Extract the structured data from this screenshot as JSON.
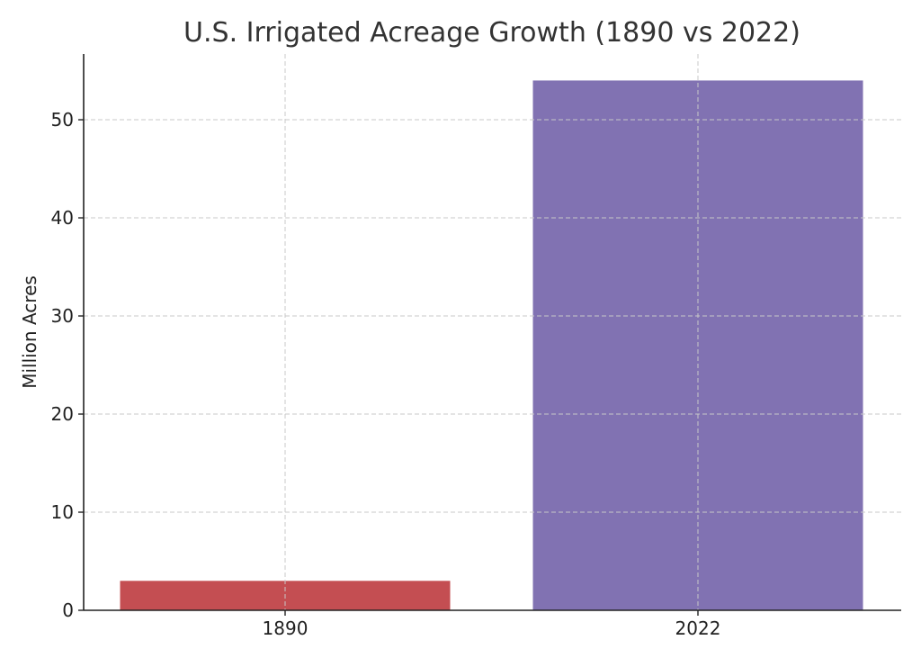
{
  "chart_data": {
    "type": "bar",
    "title": "U.S. Irrigated Acreage Growth (1890 vs 2022)",
    "xlabel": "",
    "ylabel": "Million Acres",
    "categories": [
      "1890",
      "2022"
    ],
    "values": [
      3,
      54
    ],
    "colors": [
      "#c44e52",
      "#8172b2"
    ],
    "ylim": [
      0,
      56.7
    ],
    "yticks": [
      0,
      10,
      20,
      30,
      40,
      50
    ],
    "grid": true
  }
}
